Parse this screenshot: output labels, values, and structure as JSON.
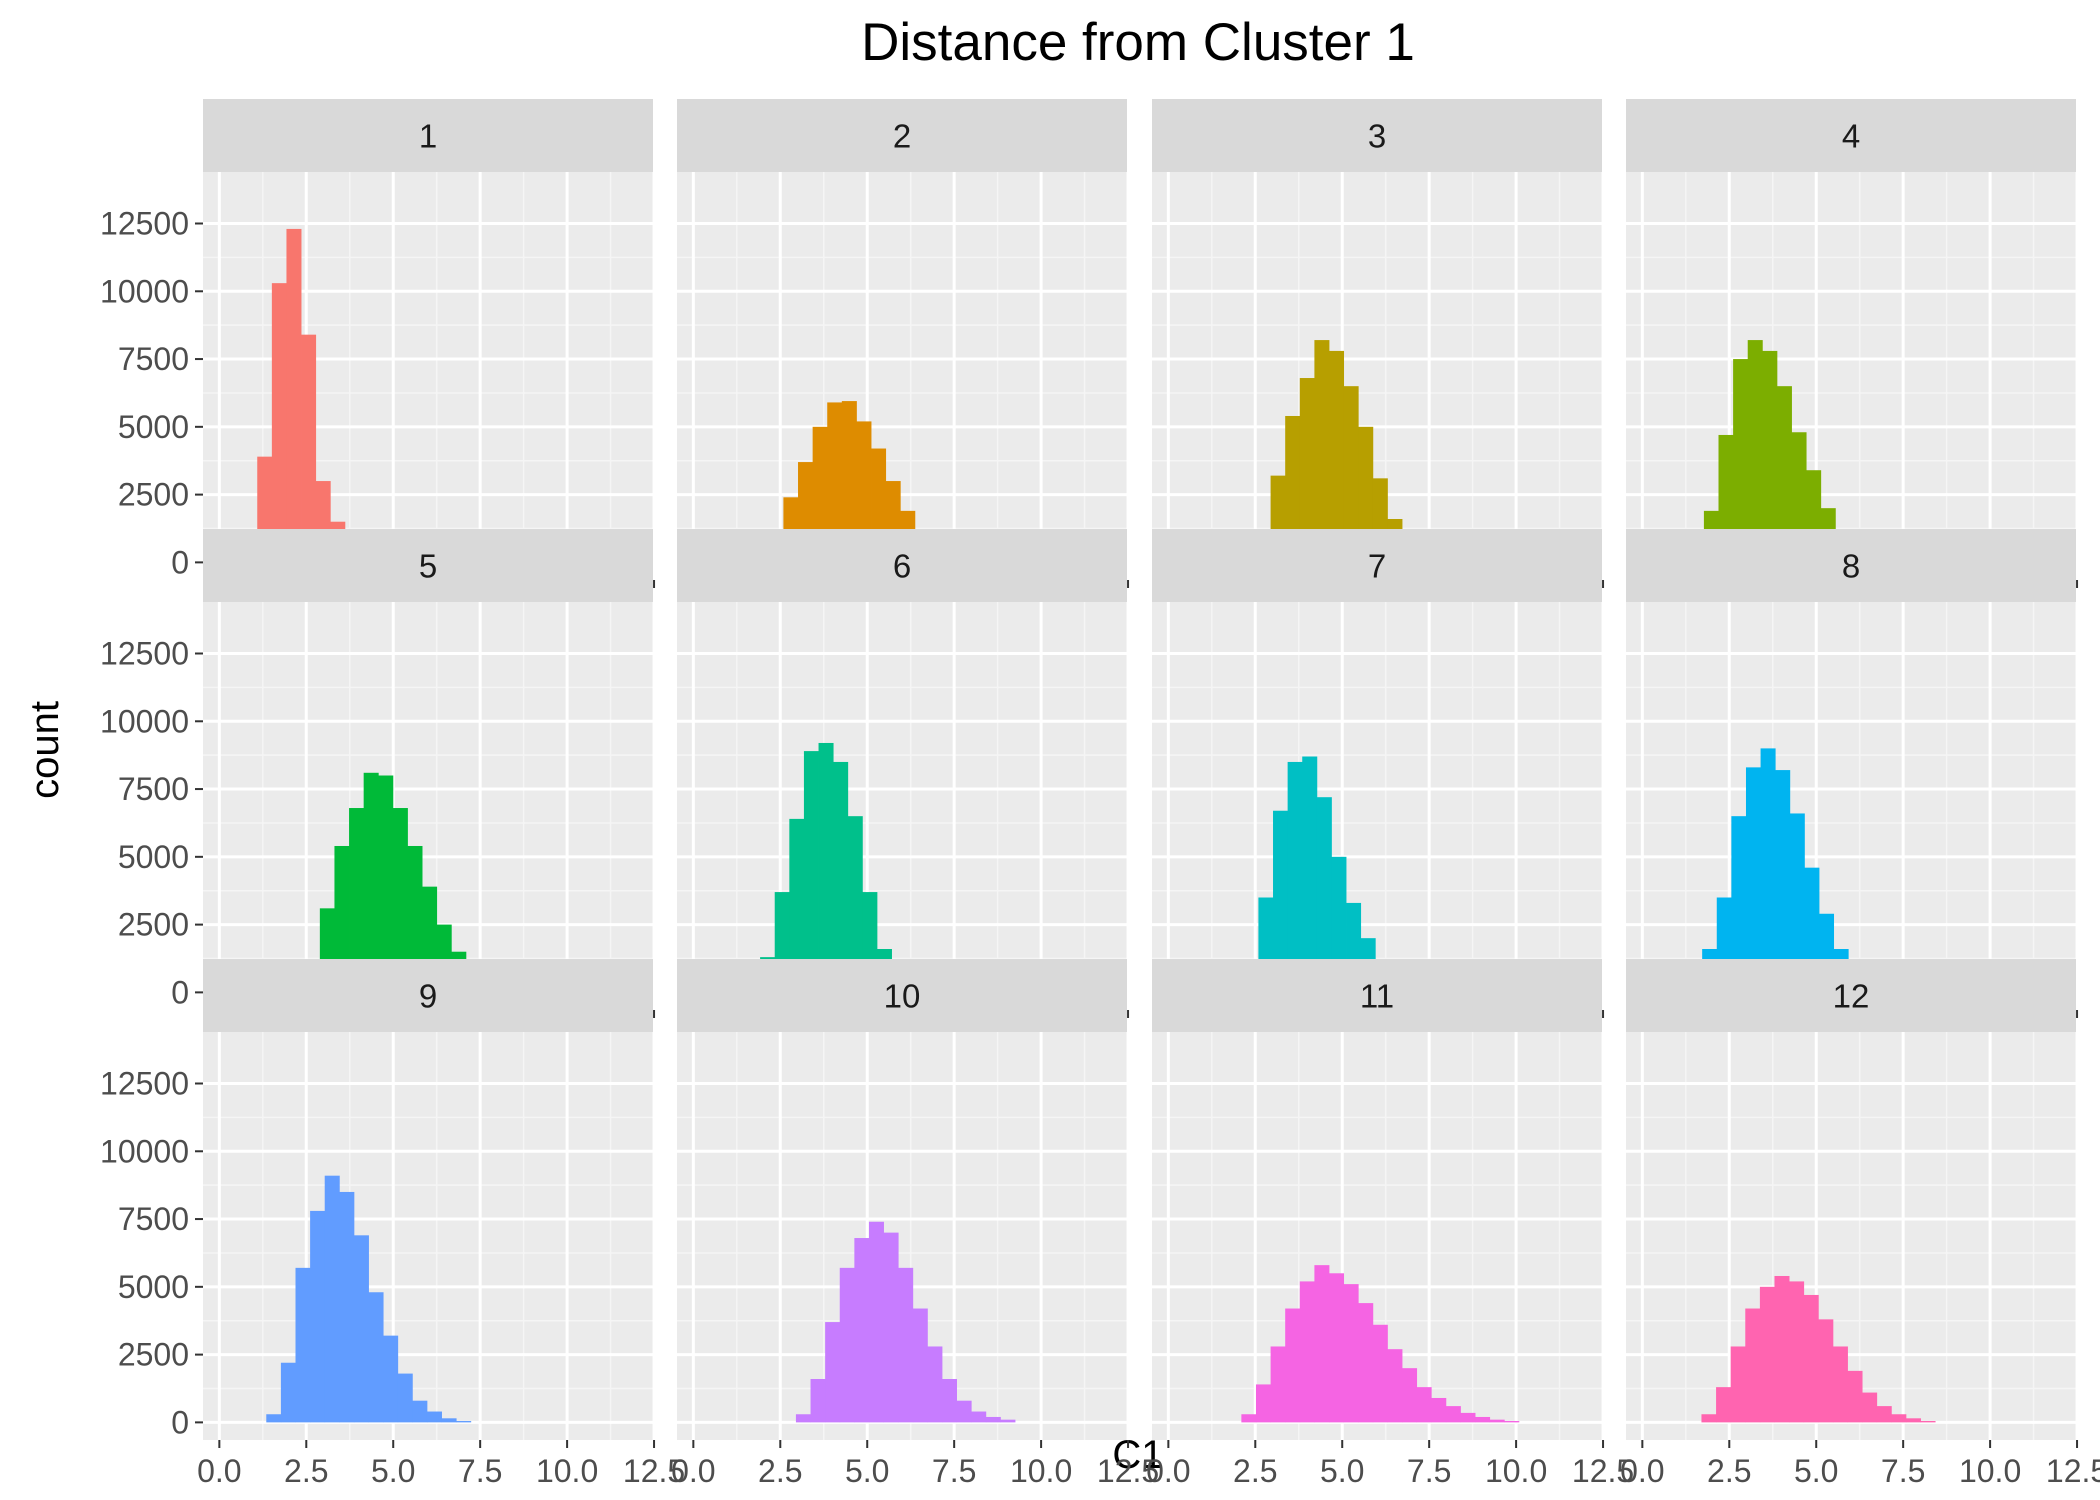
{
  "chart_data": {
    "type": "bar",
    "title": "Distance from Cluster 1",
    "xlabel": "C1",
    "ylabel": "count",
    "xlim": [
      -0.47,
      12.47
    ],
    "ylim": [
      -650,
      14400
    ],
    "x_ticks": [
      0,
      2.5,
      5,
      7.5,
      10,
      12.5
    ],
    "x_tick_labels": [
      "0.0",
      "2.5",
      "5.0",
      "7.5",
      "10.0",
      "12.5"
    ],
    "y_ticks": [
      0,
      2500,
      5000,
      7500,
      10000,
      12500
    ],
    "y_tick_labels": [
      "0",
      "2500",
      "5000",
      "7500",
      "10000",
      "12500"
    ],
    "grid": true,
    "legend": "none",
    "bin_width": 0.42,
    "panels": [
      {
        "label": "1",
        "color": "#F8766D",
        "start": 0.25,
        "counts": [
          50,
          900,
          3900,
          10300,
          12300,
          8400,
          3000,
          1500,
          650,
          300,
          120,
          50
        ]
      },
      {
        "label": "2",
        "color": "#DE8C00",
        "start": 1.75,
        "counts": [
          150,
          1100,
          2400,
          3700,
          5000,
          5900,
          5950,
          5200,
          4200,
          3000,
          1900,
          1100,
          500,
          250,
          100
        ]
      },
      {
        "label": "3",
        "color": "#B79F00",
        "start": 2.1,
        "counts": [
          100,
          1100,
          3200,
          5400,
          6800,
          8200,
          7800,
          6500,
          5000,
          3100,
          1600,
          700,
          250,
          50
        ]
      },
      {
        "label": "4",
        "color": "#7CAE00",
        "start": 1.35,
        "counts": [
          150,
          1900,
          4700,
          7500,
          8200,
          7800,
          6500,
          4800,
          3400,
          2000,
          1050,
          450,
          200,
          70
        ]
      },
      {
        "label": "5",
        "color": "#00BA38",
        "start": 2.05,
        "counts": [
          200,
          1200,
          3100,
          5400,
          6800,
          8100,
          8000,
          6800,
          5400,
          3900,
          2500,
          1500,
          750,
          400,
          150,
          50
        ]
      },
      {
        "label": "6",
        "color": "#00C08B",
        "start": 1.5,
        "counts": [
          150,
          1300,
          3700,
          6400,
          8900,
          9200,
          8500,
          6500,
          3700,
          1600,
          550,
          200,
          50
        ]
      },
      {
        "label": "7",
        "color": "#00BFC4",
        "start": 1.75,
        "counts": [
          150,
          1200,
          3500,
          6700,
          8500,
          8700,
          7200,
          5000,
          3300,
          2000,
          1200,
          600,
          300,
          150,
          50
        ]
      },
      {
        "label": "8",
        "color": "#00B4F0",
        "start": 1.3,
        "counts": [
          150,
          1600,
          3500,
          6500,
          8300,
          9000,
          8200,
          6600,
          4600,
          2900,
          1600,
          900,
          400,
          200,
          50
        ]
      },
      {
        "label": "9",
        "color": "#619CFF",
        "start": 1.35,
        "counts": [
          300,
          2200,
          5700,
          7800,
          9100,
          8500,
          6900,
          4800,
          3200,
          1800,
          800,
          400,
          150,
          50
        ]
      },
      {
        "label": "10",
        "color": "#C77CFF",
        "start": 2.95,
        "counts": [
          300,
          1600,
          3700,
          5700,
          6800,
          7400,
          7000,
          5700,
          4200,
          2800,
          1600,
          800,
          400,
          200,
          100
        ]
      },
      {
        "label": "11",
        "color": "#F564E3",
        "start": 2.1,
        "counts": [
          300,
          1400,
          2800,
          4200,
          5200,
          5800,
          5500,
          5100,
          4400,
          3600,
          2700,
          2000,
          1300,
          900,
          600,
          350,
          200,
          100,
          50
        ]
      },
      {
        "label": "12",
        "color": "#FF64B0",
        "start": 1.7,
        "counts": [
          300,
          1300,
          2800,
          4200,
          5000,
          5400,
          5200,
          4700,
          3800,
          2800,
          1900,
          1100,
          600,
          300,
          150,
          50
        ]
      }
    ]
  }
}
